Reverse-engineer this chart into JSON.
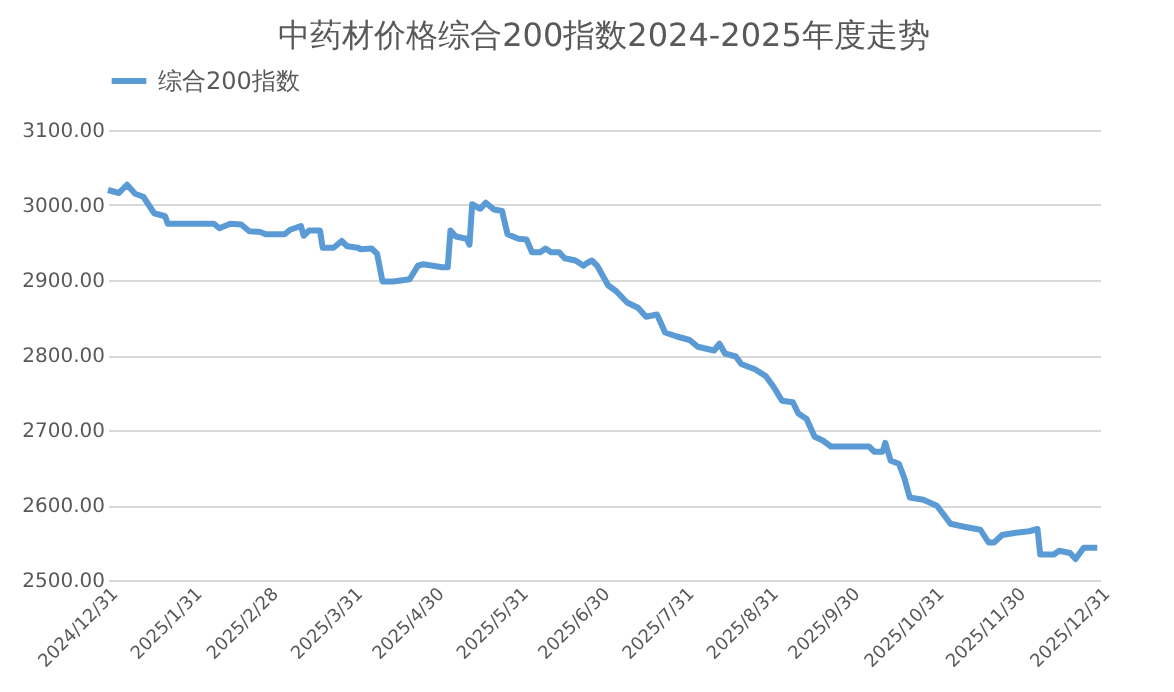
{
  "chart_data": {
    "type": "line",
    "title": "中药材价格综合200指数2024-2025年度走势",
    "x": [
      "2024-12-31",
      "2025-01-04",
      "2025-01-07",
      "2025-01-10",
      "2025-01-13",
      "2025-01-17",
      "2025-01-21",
      "2025-01-22",
      "2025-02-08",
      "2025-02-10",
      "2025-02-14",
      "2025-02-18",
      "2025-02-21",
      "2025-02-25",
      "2025-02-27",
      "2025-03-06",
      "2025-03-08",
      "2025-03-12",
      "2025-03-13",
      "2025-03-15",
      "2025-03-19",
      "2025-03-20",
      "2025-03-24",
      "2025-03-27",
      "2025-03-29",
      "2025-04-02",
      "2025-04-03",
      "2025-04-07",
      "2025-04-09",
      "2025-04-11",
      "2025-04-15",
      "2025-04-21",
      "2025-04-24",
      "2025-04-26",
      "2025-05-03",
      "2025-05-05",
      "2025-05-06",
      "2025-05-08",
      "2025-05-12",
      "2025-05-13",
      "2025-05-14",
      "2025-05-17",
      "2025-05-19",
      "2025-05-22",
      "2025-05-25",
      "2025-05-27",
      "2025-05-31",
      "2025-06-03",
      "2025-06-05",
      "2025-06-08",
      "2025-06-10",
      "2025-06-12",
      "2025-06-15",
      "2025-06-17",
      "2025-06-21",
      "2025-06-24",
      "2025-06-25",
      "2025-06-27",
      "2025-06-29",
      "2025-07-03",
      "2025-07-06",
      "2025-07-10",
      "2025-07-14",
      "2025-07-17",
      "2025-07-21",
      "2025-07-24",
      "2025-07-28",
      "2025-08-02",
      "2025-08-05",
      "2025-08-11",
      "2025-08-13",
      "2025-08-15",
      "2025-08-19",
      "2025-08-21",
      "2025-08-26",
      "2025-08-30",
      "2025-09-02",
      "2025-09-05",
      "2025-09-09",
      "2025-09-11",
      "2025-09-14",
      "2025-09-17",
      "2025-09-20",
      "2025-09-23",
      "2025-10-07",
      "2025-10-09",
      "2025-10-12",
      "2025-10-13",
      "2025-10-15",
      "2025-10-18",
      "2025-10-20",
      "2025-10-22",
      "2025-10-27",
      "2025-11-01",
      "2025-11-06",
      "2025-11-11",
      "2025-11-17",
      "2025-11-20",
      "2025-11-22",
      "2025-11-25",
      "2025-11-30",
      "2025-12-05",
      "2025-12-08",
      "2025-12-09",
      "2025-12-14",
      "2025-12-16",
      "2025-12-20",
      "2025-12-22",
      "2025-12-25",
      "2025-12-30"
    ],
    "series": [
      {
        "name": "综合200指数",
        "color": "#5b9bd5",
        "values": [
          3020,
          3016,
          3027,
          3015,
          3011,
          2989,
          2985,
          2975,
          2975,
          2969,
          2975,
          2974,
          2965,
          2964,
          2961,
          2961,
          2967,
          2972,
          2959,
          2966,
          2966,
          2943,
          2943,
          2952,
          2945,
          2943,
          2941,
          2942,
          2935,
          2898,
          2898,
          2901,
          2919,
          2921,
          2917,
          2917,
          2966,
          2958,
          2955,
          2947,
          3001,
          2995,
          3003,
          2994,
          2992,
          2961,
          2955,
          2954,
          2937,
          2937,
          2942,
          2937,
          2937,
          2929,
          2926,
          2919,
          2922,
          2926,
          2919,
          2893,
          2885,
          2870,
          2863,
          2851,
          2854,
          2830,
          2825,
          2820,
          2811,
          2806,
          2815,
          2802,
          2798,
          2788,
          2781,
          2772,
          2757,
          2739,
          2737,
          2722,
          2715,
          2691,
          2686,
          2678,
          2678,
          2671,
          2671,
          2683,
          2659,
          2655,
          2636,
          2610,
          2607,
          2599,
          2575,
          2571,
          2567,
          2550,
          2550,
          2560,
          2563,
          2565,
          2568,
          2534,
          2534,
          2539,
          2536,
          2528,
          2543,
          2543
        ]
      }
    ],
    "xlim": [
      "2024-12-31",
      "2025-12-31"
    ],
    "xticks": [
      {
        "value": "2024-12-31",
        "label": "2024/12/31"
      },
      {
        "value": "2025-01-31",
        "label": "2025/1/31"
      },
      {
        "value": "2025-02-28",
        "label": "2025/2/28"
      },
      {
        "value": "2025-03-31",
        "label": "2025/3/31"
      },
      {
        "value": "2025-04-30",
        "label": "2025/4/30"
      },
      {
        "value": "2025-05-31",
        "label": "2025/5/31"
      },
      {
        "value": "2025-06-30",
        "label": "2025/6/30"
      },
      {
        "value": "2025-07-31",
        "label": "2025/7/31"
      },
      {
        "value": "2025-08-31",
        "label": "2025/8/31"
      },
      {
        "value": "2025-09-30",
        "label": "2025/9/30"
      },
      {
        "value": "2025-10-31",
        "label": "2025/10/31"
      },
      {
        "value": "2025-11-30",
        "label": "2025/11/30"
      },
      {
        "value": "2025-12-31",
        "label": "2025/12/31"
      }
    ],
    "ylim": [
      2500,
      3100
    ],
    "yticks": [
      {
        "value": 2500,
        "label": "2500.00"
      },
      {
        "value": 2600,
        "label": "2600.00"
      },
      {
        "value": 2700,
        "label": "2700.00"
      },
      {
        "value": 2800,
        "label": "2800.00"
      },
      {
        "value": 2900,
        "label": "2900.00"
      },
      {
        "value": 3000,
        "label": "3000.00"
      },
      {
        "value": 3100,
        "label": "3100.00"
      }
    ],
    "grid": "y",
    "legend": "top",
    "marker": "none",
    "line_style": "solid"
  }
}
